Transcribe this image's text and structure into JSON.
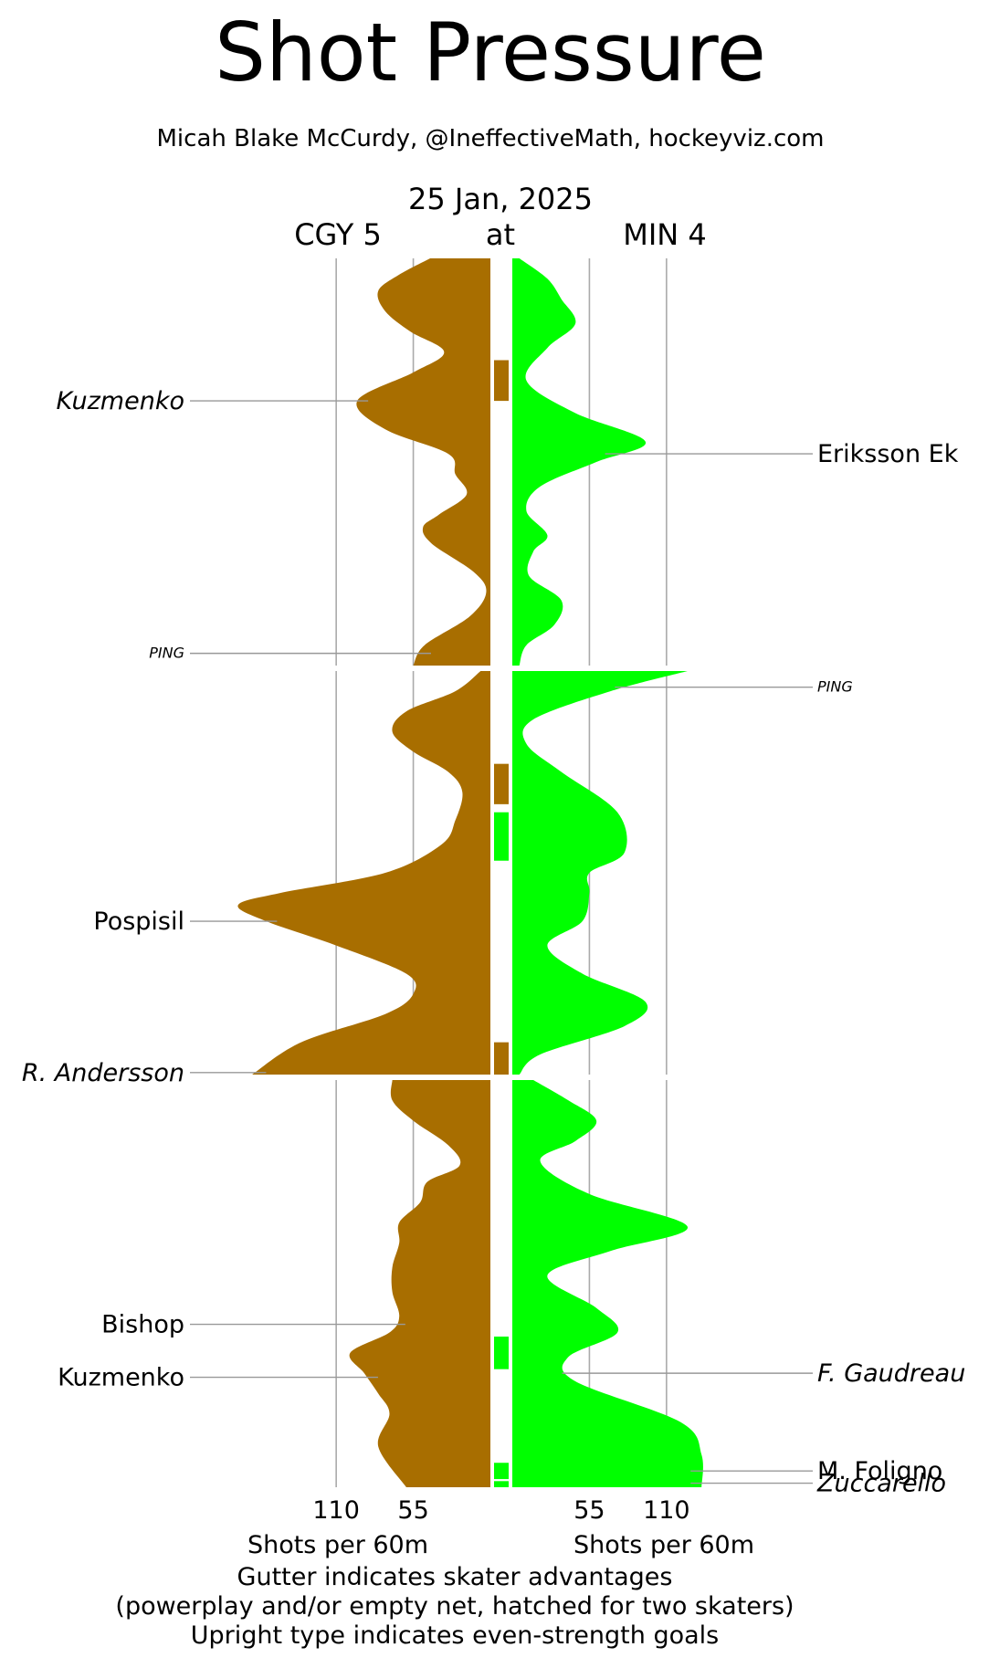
{
  "title": "Shot Pressure",
  "subtitle": "Micah Blake McCurdy, @IneffectiveMath, hockeyviz.com",
  "game": {
    "date": "25 Jan, 2025",
    "away": "CGY 5",
    "at": "at",
    "home": "MIN 4"
  },
  "footer": {
    "line1": "Gutter indicates skater advantages",
    "line2": "(powerplay and/or empty net, hatched for two skaters)",
    "line3": "Upright type indicates even-strength goals"
  },
  "colors": {
    "away": "#A86E00",
    "home": "#00FF00",
    "grid": "#AAAAAA",
    "connector": "#999999"
  },
  "chart_data": {
    "type": "area",
    "orientation": "vertical mirrored",
    "x_axis": {
      "ticks": [
        110,
        55
      ],
      "label": "Shots per 60m",
      "range": [
        0,
        190
      ]
    },
    "periods": 3,
    "t_unit": "fraction of period (top = start)",
    "series": [
      {
        "name": "CGY 5",
        "side": "left",
        "profiles": [
          [
            [
              0.0,
              43
            ],
            [
              0.04,
              65
            ],
            [
              0.08,
              80
            ],
            [
              0.13,
              75
            ],
            [
              0.18,
              57
            ],
            [
              0.23,
              33
            ],
            [
              0.28,
              55
            ],
            [
              0.35,
              95
            ],
            [
              0.42,
              75
            ],
            [
              0.48,
              30
            ],
            [
              0.53,
              25
            ],
            [
              0.58,
              17
            ],
            [
              0.63,
              37
            ],
            [
              0.66,
              48
            ],
            [
              0.7,
              42
            ],
            [
              0.77,
              12
            ],
            [
              0.82,
              3
            ],
            [
              0.88,
              15
            ],
            [
              0.95,
              47
            ],
            [
              1.0,
              55
            ]
          ],
          [
            [
              0.0,
              7
            ],
            [
              0.05,
              25
            ],
            [
              0.1,
              60
            ],
            [
              0.15,
              70
            ],
            [
              0.2,
              55
            ],
            [
              0.25,
              30
            ],
            [
              0.3,
              20
            ],
            [
              0.37,
              25
            ],
            [
              0.43,
              35
            ],
            [
              0.5,
              75
            ],
            [
              0.55,
              150
            ],
            [
              0.58,
              180
            ],
            [
              0.62,
              160
            ],
            [
              0.68,
              110
            ],
            [
              0.75,
              60
            ],
            [
              0.8,
              55
            ],
            [
              0.85,
              75
            ],
            [
              0.92,
              135
            ],
            [
              1.0,
              170
            ]
          ],
          [
            [
              0.0,
              70
            ],
            [
              0.05,
              70
            ],
            [
              0.1,
              55
            ],
            [
              0.16,
              30
            ],
            [
              0.21,
              22
            ],
            [
              0.25,
              45
            ],
            [
              0.3,
              50
            ],
            [
              0.35,
              65
            ],
            [
              0.4,
              65
            ],
            [
              0.46,
              70
            ],
            [
              0.52,
              70
            ],
            [
              0.58,
              65
            ],
            [
              0.62,
              72
            ],
            [
              0.67,
              100
            ],
            [
              0.72,
              90
            ],
            [
              0.77,
              80
            ],
            [
              0.82,
              72
            ],
            [
              0.9,
              80
            ],
            [
              1.0,
              60
            ]
          ]
        ]
      },
      {
        "name": "MIN 4",
        "side": "right",
        "profiles": [
          [
            [
              0.0,
              5
            ],
            [
              0.05,
              25
            ],
            [
              0.1,
              35
            ],
            [
              0.16,
              45
            ],
            [
              0.22,
              25
            ],
            [
              0.3,
              10
            ],
            [
              0.38,
              45
            ],
            [
              0.45,
              95
            ],
            [
              0.5,
              60
            ],
            [
              0.56,
              20
            ],
            [
              0.62,
              10
            ],
            [
              0.68,
              25
            ],
            [
              0.72,
              15
            ],
            [
              0.78,
              12
            ],
            [
              0.84,
              35
            ],
            [
              0.9,
              30
            ],
            [
              0.95,
              10
            ],
            [
              1.0,
              5
            ]
          ],
          [
            [
              0.0,
              125
            ],
            [
              0.05,
              70
            ],
            [
              0.12,
              15
            ],
            [
              0.18,
              10
            ],
            [
              0.25,
              35
            ],
            [
              0.35,
              75
            ],
            [
              0.45,
              80
            ],
            [
              0.5,
              55
            ],
            [
              0.55,
              55
            ],
            [
              0.62,
              50
            ],
            [
              0.68,
              25
            ],
            [
              0.75,
              50
            ],
            [
              0.82,
              95
            ],
            [
              0.88,
              80
            ],
            [
              0.95,
              20
            ],
            [
              1.0,
              5
            ]
          ],
          [
            [
              0.0,
              15
            ],
            [
              0.05,
              40
            ],
            [
              0.1,
              60
            ],
            [
              0.15,
              45
            ],
            [
              0.2,
              20
            ],
            [
              0.28,
              55
            ],
            [
              0.36,
              125
            ],
            [
              0.42,
              70
            ],
            [
              0.48,
              25
            ],
            [
              0.56,
              60
            ],
            [
              0.62,
              75
            ],
            [
              0.68,
              40
            ],
            [
              0.74,
              45
            ],
            [
              0.84,
              120
            ],
            [
              0.92,
              135
            ],
            [
              1.0,
              135
            ]
          ]
        ]
      }
    ],
    "gutter": [
      {
        "team": "CGY 5",
        "period": 1,
        "t0": 0.25,
        "t1": 0.35
      },
      {
        "team": "CGY 5",
        "period": 2,
        "t0": 0.23,
        "t1": 0.33
      },
      {
        "team": "MIN 4",
        "period": 2,
        "t0": 0.35,
        "t1": 0.47
      },
      {
        "team": "CGY 5",
        "period": 2,
        "t0": 0.92,
        "t1": 1.0
      },
      {
        "team": "MIN 4",
        "period": 3,
        "t0": 0.63,
        "t1": 0.71
      },
      {
        "team": "MIN 4",
        "period": 3,
        "t0": 0.94,
        "t1": 0.98
      },
      {
        "team": "MIN 4",
        "period": 3,
        "t0": 0.985,
        "t1": 1.0
      }
    ],
    "goals": [
      {
        "team": "CGY 5",
        "period": 1,
        "t": 0.35,
        "label": "Kuzmenko",
        "italic": true,
        "size": "normal"
      },
      {
        "team": "CGY 5",
        "period": 1,
        "t": 0.97,
        "label": "PING",
        "italic": true,
        "size": "small"
      },
      {
        "team": "CGY 5",
        "period": 2,
        "t": 0.62,
        "label": "Pospisil",
        "italic": false,
        "size": "normal"
      },
      {
        "team": "CGY 5",
        "period": 2,
        "t": 0.995,
        "label": "R. Andersson",
        "italic": true,
        "size": "normal"
      },
      {
        "team": "CGY 5",
        "period": 3,
        "t": 0.6,
        "label": "Bishop",
        "italic": false,
        "size": "normal"
      },
      {
        "team": "CGY 5",
        "period": 3,
        "t": 0.73,
        "label": "Kuzmenko",
        "italic": false,
        "size": "normal"
      },
      {
        "team": "MIN 4",
        "period": 1,
        "t": 0.48,
        "label": "Eriksson Ek",
        "italic": false,
        "size": "normal"
      },
      {
        "team": "MIN 4",
        "period": 2,
        "t": 0.04,
        "label": "PING",
        "italic": true,
        "size": "small"
      },
      {
        "team": "MIN 4",
        "period": 3,
        "t": 0.72,
        "label": "F. Gaudreau",
        "italic": true,
        "size": "normal"
      },
      {
        "team": "MIN 4",
        "period": 3,
        "t": 0.96,
        "label": "M. Foligno",
        "italic": false,
        "size": "normal"
      },
      {
        "team": "MIN 4",
        "period": 3,
        "t": 0.99,
        "label": "Zuccarello",
        "italic": true,
        "size": "normal"
      }
    ]
  }
}
